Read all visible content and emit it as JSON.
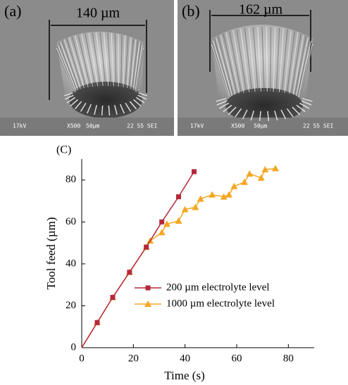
{
  "images": [
    {
      "label": "(a)",
      "dimension": "140 µm",
      "footer": [
        "17kV",
        "X500",
        "50µm",
        "22 55 SEI"
      ]
    },
    {
      "label": "(b)",
      "dimension": "162 µm",
      "footer": [
        "17kV",
        "X500",
        "50µm",
        "22 55 SEI"
      ]
    }
  ],
  "chart_data": {
    "type": "line",
    "panel_label": "(C)",
    "x_label": "Time (s)",
    "y_label": "Tool feed (µm)",
    "xlim": [
      0,
      90
    ],
    "ylim": [
      0,
      90
    ],
    "xticks": [
      0,
      20,
      40,
      60,
      80
    ],
    "yticks": [
      0,
      20,
      40,
      60,
      80
    ],
    "legend": "lower right",
    "series": [
      {
        "name": "200 µm electrolyte level",
        "color": "#b5283a",
        "marker": "square",
        "x": [
          0,
          6,
          12,
          18.5,
          25,
          31,
          37.5,
          43.5
        ],
        "values": [
          0,
          12,
          24,
          36,
          48,
          60,
          72,
          84
        ]
      },
      {
        "name": "1000 µm electrolyte level",
        "color": "#f5a623",
        "marker": "triangle",
        "x": [
          0,
          6,
          12,
          18.5,
          25,
          26.5,
          31,
          33,
          37.5,
          40,
          44,
          46,
          50.5,
          55,
          57,
          59,
          63,
          65,
          69.5,
          71,
          75
        ],
        "values": [
          0,
          12,
          24,
          36,
          48,
          51,
          55,
          59,
          60.5,
          66,
          67,
          71,
          73,
          72,
          73,
          77,
          79,
          83,
          81,
          85,
          85.5
        ]
      }
    ]
  }
}
